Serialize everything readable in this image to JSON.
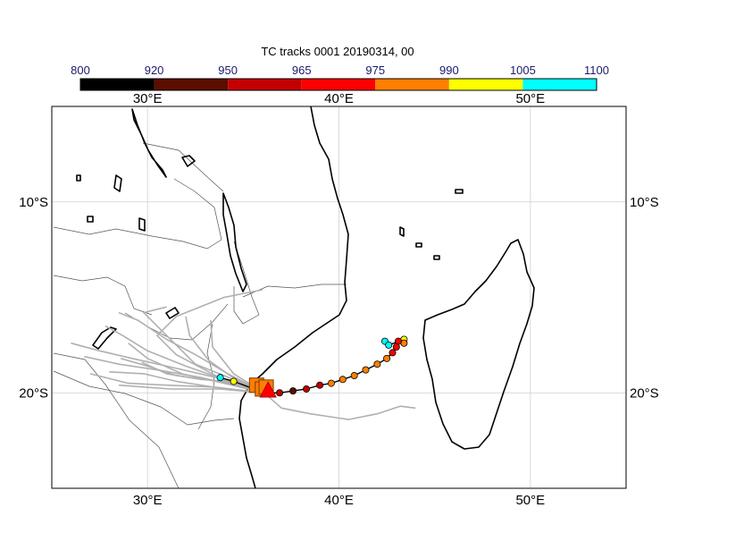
{
  "title": "TC tracks  0001 20190314, 00",
  "colorbar": {
    "labels": [
      "800",
      "920",
      "950",
      "965",
      "975",
      "990",
      "1005",
      "1100"
    ],
    "colors": [
      "#000000",
      "#5a0e00",
      "#c40000",
      "#ff0000",
      "#ff7f00",
      "#ffff00",
      "#00ffff",
      "#b4b4b4"
    ]
  },
  "map": {
    "lon_range": [
      25,
      55
    ],
    "lat_range": [
      -25,
      -5
    ],
    "lon_ticks": [
      {
        "value": 30,
        "label": "30°E"
      },
      {
        "value": 40,
        "label": "40°E"
      },
      {
        "value": 50,
        "label": "50°E"
      }
    ],
    "lat_ticks": [
      {
        "value": -10,
        "label": "10°S"
      },
      {
        "value": -20,
        "label": "20°S"
      }
    ]
  },
  "chart_data": {
    "type": "scatter",
    "title": "TC tracks  0001 20190314, 00",
    "xlim": [
      25,
      55
    ],
    "ylim": [
      -25,
      -5
    ],
    "color_scale_bounds": [
      800,
      920,
      950,
      965,
      975,
      990,
      1005,
      1100
    ],
    "track": [
      {
        "lon": 42.4,
        "lat": -17.3,
        "color": "#00ffff"
      },
      {
        "lon": 42.6,
        "lat": -17.5,
        "color": "#00ffff"
      },
      {
        "lon": 43.4,
        "lat": -17.2,
        "color": "#ffff00"
      },
      {
        "lon": 43.4,
        "lat": -17.4,
        "color": "#ff7f00"
      },
      {
        "lon": 43.1,
        "lat": -17.3,
        "color": "#ff0000"
      },
      {
        "lon": 43.0,
        "lat": -17.6,
        "color": "#ff0000"
      },
      {
        "lon": 42.8,
        "lat": -17.9,
        "color": "#ff0000"
      },
      {
        "lon": 42.5,
        "lat": -18.2,
        "color": "#ff7f00"
      },
      {
        "lon": 42.0,
        "lat": -18.5,
        "color": "#ff7f00"
      },
      {
        "lon": 41.4,
        "lat": -18.8,
        "color": "#ff7f00"
      },
      {
        "lon": 40.8,
        "lat": -19.1,
        "color": "#ff7f00"
      },
      {
        "lon": 40.2,
        "lat": -19.3,
        "color": "#ff7f00"
      },
      {
        "lon": 39.6,
        "lat": -19.5,
        "color": "#ff7f00"
      },
      {
        "lon": 39.0,
        "lat": -19.6,
        "color": "#c40000"
      },
      {
        "lon": 38.3,
        "lat": -19.8,
        "color": "#c40000"
      },
      {
        "lon": 37.6,
        "lat": -19.9,
        "color": "#5a0e00"
      },
      {
        "lon": 36.9,
        "lat": -20.0,
        "color": "#c40000"
      },
      {
        "lon": 36.1,
        "lat": -20.0,
        "color": "#ff0000"
      }
    ],
    "track_tail": [
      {
        "lon": 34.5,
        "lat": -19.4,
        "color": "#ffff00"
      },
      {
        "lon": 33.8,
        "lat": -19.2,
        "color": "#00ffff"
      }
    ],
    "landfall_markers": [
      {
        "lon": 35.7,
        "lat": -19.6,
        "shape": "square",
        "color": "#ff7f00"
      },
      {
        "lon": 36.0,
        "lat": -19.8,
        "shape": "square",
        "color": "#ff7f00"
      },
      {
        "lon": 36.2,
        "lat": -19.7,
        "shape": "square",
        "color": "#ff7f00"
      },
      {
        "lon": 36.3,
        "lat": -19.9,
        "shape": "triangle",
        "color": "#ff0000"
      }
    ],
    "ensemble_tracks": [
      [
        [
          36.1,
          -20.0
        ],
        [
          34.5,
          -19.6
        ],
        [
          32.8,
          -19.2
        ],
        [
          30.5,
          -18.8
        ],
        [
          28.5,
          -18.5
        ],
        [
          26.7,
          -18.1
        ]
      ],
      [
        [
          36.1,
          -20.0
        ],
        [
          34.0,
          -19.3
        ],
        [
          32.0,
          -18.6
        ],
        [
          30.0,
          -17.8
        ],
        [
          28.7,
          -17.0
        ],
        [
          27.8,
          -16.5
        ]
      ],
      [
        [
          36.1,
          -20.0
        ],
        [
          33.5,
          -19.7
        ],
        [
          31.0,
          -19.6
        ],
        [
          29.0,
          -19.5
        ],
        [
          27.0,
          -19.0
        ]
      ],
      [
        [
          36.1,
          -20.0
        ],
        [
          34.2,
          -19.0
        ],
        [
          32.5,
          -18.0
        ],
        [
          31.0,
          -17.2
        ],
        [
          29.5,
          -16.2
        ],
        [
          28.5,
          -15.8
        ]
      ],
      [
        [
          36.1,
          -20.0
        ],
        [
          34.0,
          -19.5
        ],
        [
          31.8,
          -19.0
        ],
        [
          30.0,
          -18.2
        ],
        [
          29.0,
          -17.4
        ]
      ],
      [
        [
          36.1,
          -20.0
        ],
        [
          33.6,
          -19.2
        ],
        [
          31.0,
          -18.6
        ],
        [
          29.2,
          -18.2
        ],
        [
          27.5,
          -17.8
        ],
        [
          26.0,
          -17.4
        ]
      ],
      [
        [
          36.1,
          -20.0
        ],
        [
          34.3,
          -19.5
        ],
        [
          33.0,
          -18.8
        ],
        [
          31.5,
          -18.0
        ],
        [
          30.5,
          -17.0
        ],
        [
          31.5,
          -16.0
        ],
        [
          34.0,
          -15.0
        ],
        [
          36.0,
          -14.6
        ]
      ],
      [
        [
          36.1,
          -20.0
        ],
        [
          34.6,
          -19.3
        ],
        [
          33.2,
          -18.3
        ],
        [
          32.2,
          -17.0
        ],
        [
          32.0,
          -16.0
        ]
      ],
      [
        [
          36.1,
          -20.0
        ],
        [
          34.1,
          -19.8
        ],
        [
          31.5,
          -19.4
        ],
        [
          29.8,
          -19.0
        ],
        [
          28.0,
          -18.9
        ]
      ],
      [
        [
          36.1,
          -20.0
        ],
        [
          34.5,
          -19.0
        ],
        [
          33.4,
          -17.6
        ],
        [
          33.3,
          -16.2
        ]
      ],
      [
        [
          36.1,
          -20.0
        ],
        [
          33.8,
          -19.4
        ],
        [
          31.5,
          -19.1
        ],
        [
          30.0,
          -18.6
        ],
        [
          28.6,
          -18.2
        ]
      ],
      [
        [
          36.1,
          -20.0
        ],
        [
          34.0,
          -19.1
        ],
        [
          32.5,
          -18.5
        ],
        [
          30.8,
          -16.8
        ],
        [
          29.8,
          -15.8
        ],
        [
          31.0,
          -15.5
        ]
      ],
      [
        [
          36.1,
          -20.0
        ],
        [
          33.8,
          -19.8
        ],
        [
          31.2,
          -19.8
        ],
        [
          28.5,
          -19.6
        ]
      ],
      [
        [
          36.1,
          -20.0
        ],
        [
          34.2,
          -19.4
        ],
        [
          32.8,
          -19.3
        ],
        [
          31.0,
          -19.0
        ],
        [
          29.7,
          -18.4
        ]
      ],
      [
        [
          36.1,
          -20.0
        ],
        [
          37.0,
          -20.8
        ],
        [
          38.5,
          -21.1
        ],
        [
          40.5,
          -21.4
        ],
        [
          42.0,
          -21.1
        ],
        [
          43.2,
          -20.7
        ],
        [
          44.0,
          -20.8
        ]
      ]
    ]
  }
}
